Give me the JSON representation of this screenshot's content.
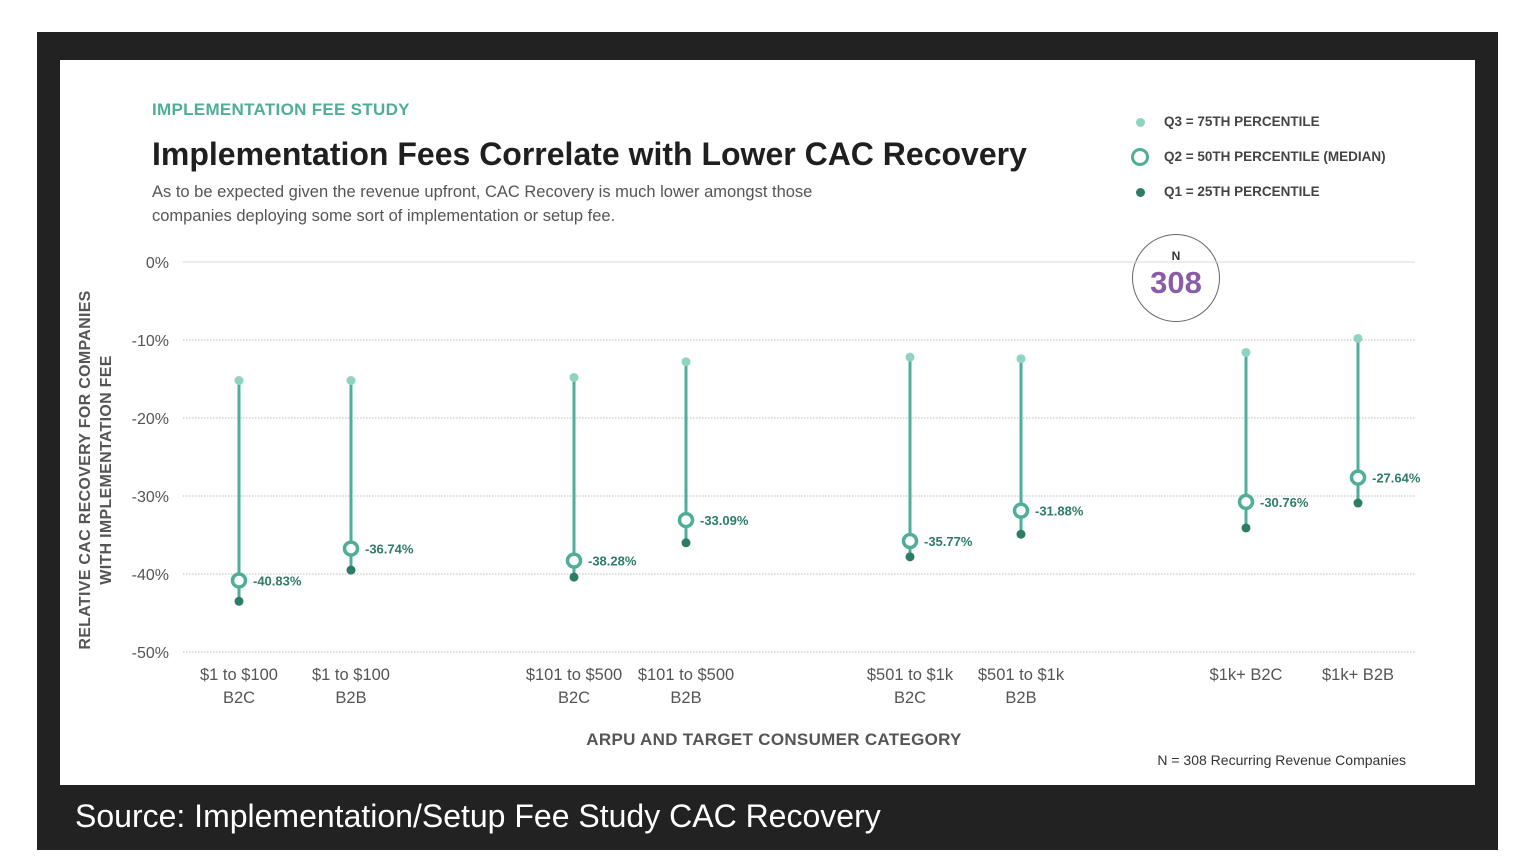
{
  "kicker": "IMPLEMENTATION FEE STUDY",
  "source": "Source: Implementation/Setup Fee Study CAC Recovery",
  "legend": {
    "q3": "Q3 = 75TH PERCENTILE",
    "q2": "Q2 = 50TH PERCENTILE (MEDIAN)",
    "q1": "Q1 = 25TH PERCENTILE"
  },
  "badge": {
    "label": "N",
    "value": "308"
  },
  "footnote": "N = 308 Recurring Revenue Companies",
  "colors": {
    "line": "#4fae98",
    "q3": "#8fd3c3",
    "q1": "#2e7b68",
    "badge": "#8a5ca8"
  },
  "chart_data": {
    "type": "scatter",
    "title": "Implementation Fees Correlate with Lower CAC Recovery",
    "subtitle": "As to be expected given the revenue upfront, CAC Recovery is much lower amongst those companies deploying some sort of implementation or setup fee.",
    "xlabel": "ARPU AND TARGET CONSUMER CATEGORY",
    "ylabel": "RELATIVE CAC RECOVERY FOR COMPANIES WITH IMPLEMENTATION FEE",
    "ylim": [
      -50,
      0
    ],
    "yticks": [
      0,
      -10,
      -20,
      -30,
      -40,
      -50
    ],
    "ytick_labels": [
      "0%",
      "-10%",
      "-20%",
      "-30%",
      "-40%",
      "-50%"
    ],
    "grid": true,
    "legend_position": "top-right",
    "categories": [
      [
        "$1 to $100",
        "B2C"
      ],
      [
        "$1 to $100",
        "B2B"
      ],
      [
        "$101 to $500",
        "B2C"
      ],
      [
        "$101 to $500",
        "B2B"
      ],
      [
        "$501 to $1k",
        "B2C"
      ],
      [
        "$501 to $1k",
        "B2B"
      ],
      [
        "$1k+ B2C",
        ""
      ],
      [
        "$1k+ B2B",
        ""
      ]
    ],
    "series": [
      {
        "name": "Q3 = 75TH PERCENTILE",
        "values": [
          -15.2,
          -15.2,
          -14.8,
          -12.8,
          -12.2,
          -12.4,
          -11.6,
          -9.8
        ]
      },
      {
        "name": "Q2 = 50TH PERCENTILE (MEDIAN)",
        "values": [
          -40.83,
          -36.74,
          -38.28,
          -33.09,
          -35.77,
          -31.88,
          -30.76,
          -27.64
        ]
      },
      {
        "name": "Q1 = 25TH PERCENTILE",
        "values": [
          -43.5,
          -39.5,
          -40.4,
          -36.0,
          -37.8,
          -34.9,
          -34.1,
          -30.9
        ]
      }
    ],
    "median_labels": [
      "-40.83%",
      "-36.74%",
      "-38.28%",
      "-33.09%",
      "-35.77%",
      "-31.88%",
      "-30.76%",
      "-27.64%"
    ]
  }
}
